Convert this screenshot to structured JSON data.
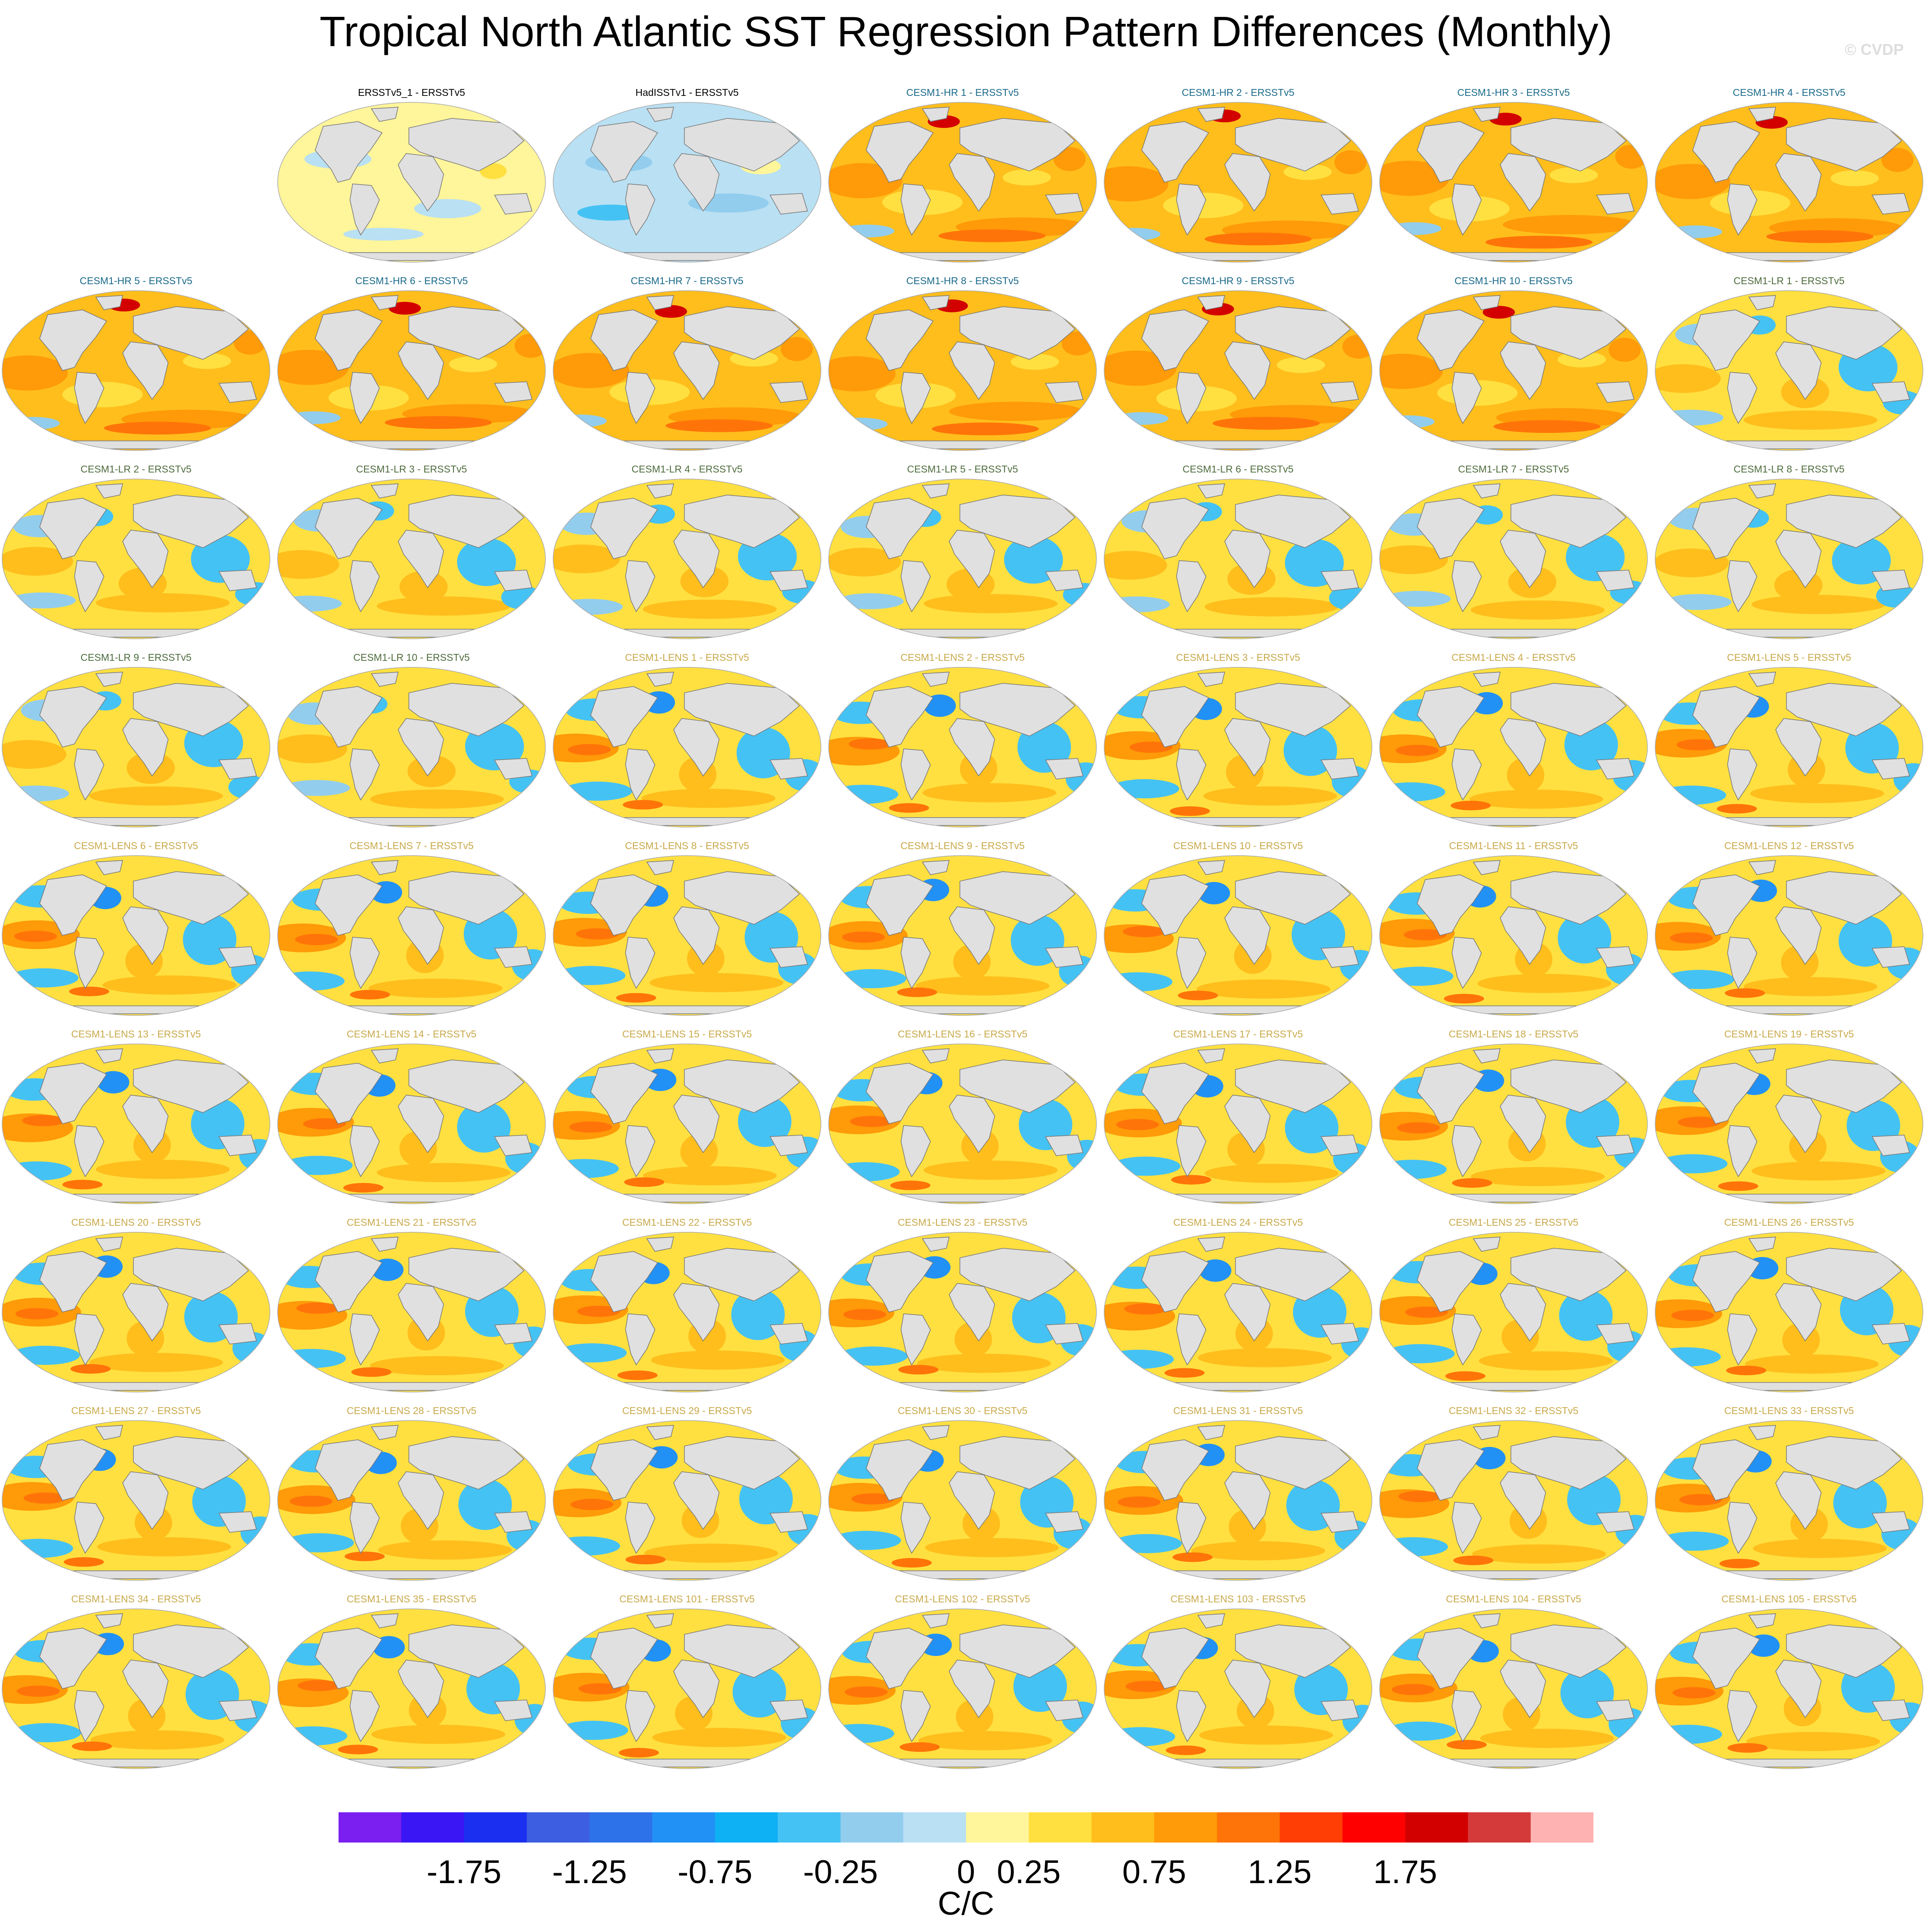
{
  "title": "Tropical North Atlantic SST Regression Pattern Differences (Monthly)",
  "copyright": "© CVDP",
  "colors": {
    "obs_title": "#000000",
    "hr_title": "#1a6a8a",
    "lr_title": "#4d6b3c",
    "lens_title": "#c9a94a",
    "land": "#e0e0e0",
    "coast": "#777777"
  },
  "panels": [
    {
      "label": "ERSSTv5_1 - ERSSTv5",
      "group": "obs",
      "pattern": "weak-pos"
    },
    {
      "label": "HadISSTv1 - ERSSTv5",
      "group": "obs",
      "pattern": "weak-neg"
    },
    {
      "label": "CESM1-HR 1 - ERSSTv5",
      "group": "hr",
      "pattern": "hr"
    },
    {
      "label": "CESM1-HR 2 - ERSSTv5",
      "group": "hr",
      "pattern": "hr"
    },
    {
      "label": "CESM1-HR 3 - ERSSTv5",
      "group": "hr",
      "pattern": "hr"
    },
    {
      "label": "CESM1-HR 4 - ERSSTv5",
      "group": "hr",
      "pattern": "hr"
    },
    {
      "label": "CESM1-HR 5 - ERSSTv5",
      "group": "hr",
      "pattern": "hr"
    },
    {
      "label": "CESM1-HR 6 - ERSSTv5",
      "group": "hr",
      "pattern": "hr"
    },
    {
      "label": "CESM1-HR 7 - ERSSTv5",
      "group": "hr",
      "pattern": "hr"
    },
    {
      "label": "CESM1-HR 8 - ERSSTv5",
      "group": "hr",
      "pattern": "hr"
    },
    {
      "label": "CESM1-HR 9 - ERSSTv5",
      "group": "hr",
      "pattern": "hr"
    },
    {
      "label": "CESM1-HR 10 - ERSSTv5",
      "group": "hr",
      "pattern": "hr"
    },
    {
      "label": "CESM1-LR 1 - ERSSTv5",
      "group": "lr",
      "pattern": "lr"
    },
    {
      "label": "CESM1-LR 2 - ERSSTv5",
      "group": "lr",
      "pattern": "lr"
    },
    {
      "label": "CESM1-LR 3 - ERSSTv5",
      "group": "lr",
      "pattern": "lr"
    },
    {
      "label": "CESM1-LR 4 - ERSSTv5",
      "group": "lr",
      "pattern": "lr"
    },
    {
      "label": "CESM1-LR 5 - ERSSTv5",
      "group": "lr",
      "pattern": "lr"
    },
    {
      "label": "CESM1-LR 6 - ERSSTv5",
      "group": "lr",
      "pattern": "lr"
    },
    {
      "label": "CESM1-LR 7 - ERSSTv5",
      "group": "lr",
      "pattern": "lr"
    },
    {
      "label": "CESM1-LR 8 - ERSSTv5",
      "group": "lr",
      "pattern": "lr"
    },
    {
      "label": "CESM1-LR 9 - ERSSTv5",
      "group": "lr",
      "pattern": "lr"
    },
    {
      "label": "CESM1-LR 10 - ERSSTv5",
      "group": "lr",
      "pattern": "lr"
    },
    {
      "label": "CESM1-LENS 1 - ERSSTv5",
      "group": "lens",
      "pattern": "lens"
    },
    {
      "label": "CESM1-LENS 2 - ERSSTv5",
      "group": "lens",
      "pattern": "lens"
    },
    {
      "label": "CESM1-LENS 3 - ERSSTv5",
      "group": "lens",
      "pattern": "lens"
    },
    {
      "label": "CESM1-LENS 4 - ERSSTv5",
      "group": "lens",
      "pattern": "lens"
    },
    {
      "label": "CESM1-LENS 5 - ERSSTv5",
      "group": "lens",
      "pattern": "lens"
    },
    {
      "label": "CESM1-LENS 6 - ERSSTv5",
      "group": "lens",
      "pattern": "lens"
    },
    {
      "label": "CESM1-LENS 7 - ERSSTv5",
      "group": "lens",
      "pattern": "lens"
    },
    {
      "label": "CESM1-LENS 8 - ERSSTv5",
      "group": "lens",
      "pattern": "lens"
    },
    {
      "label": "CESM1-LENS 9 - ERSSTv5",
      "group": "lens",
      "pattern": "lens"
    },
    {
      "label": "CESM1-LENS 10 - ERSSTv5",
      "group": "lens",
      "pattern": "lens"
    },
    {
      "label": "CESM1-LENS 11 - ERSSTv5",
      "group": "lens",
      "pattern": "lens"
    },
    {
      "label": "CESM1-LENS 12 - ERSSTv5",
      "group": "lens",
      "pattern": "lens"
    },
    {
      "label": "CESM1-LENS 13 - ERSSTv5",
      "group": "lens",
      "pattern": "lens"
    },
    {
      "label": "CESM1-LENS 14 - ERSSTv5",
      "group": "lens",
      "pattern": "lens"
    },
    {
      "label": "CESM1-LENS 15 - ERSSTv5",
      "group": "lens",
      "pattern": "lens"
    },
    {
      "label": "CESM1-LENS 16 - ERSSTv5",
      "group": "lens",
      "pattern": "lens"
    },
    {
      "label": "CESM1-LENS 17 - ERSSTv5",
      "group": "lens",
      "pattern": "lens"
    },
    {
      "label": "CESM1-LENS 18 - ERSSTv5",
      "group": "lens",
      "pattern": "lens"
    },
    {
      "label": "CESM1-LENS 19 - ERSSTv5",
      "group": "lens",
      "pattern": "lens"
    },
    {
      "label": "CESM1-LENS 20 - ERSSTv5",
      "group": "lens",
      "pattern": "lens"
    },
    {
      "label": "CESM1-LENS 21 - ERSSTv5",
      "group": "lens",
      "pattern": "lens"
    },
    {
      "label": "CESM1-LENS 22 - ERSSTv5",
      "group": "lens",
      "pattern": "lens"
    },
    {
      "label": "CESM1-LENS 23 - ERSSTv5",
      "group": "lens",
      "pattern": "lens"
    },
    {
      "label": "CESM1-LENS 24 - ERSSTv5",
      "group": "lens",
      "pattern": "lens"
    },
    {
      "label": "CESM1-LENS 25 - ERSSTv5",
      "group": "lens",
      "pattern": "lens"
    },
    {
      "label": "CESM1-LENS 26 - ERSSTv5",
      "group": "lens",
      "pattern": "lens"
    },
    {
      "label": "CESM1-LENS 27 - ERSSTv5",
      "group": "lens",
      "pattern": "lens"
    },
    {
      "label": "CESM1-LENS 28 - ERSSTv5",
      "group": "lens",
      "pattern": "lens"
    },
    {
      "label": "CESM1-LENS 29 - ERSSTv5",
      "group": "lens",
      "pattern": "lens"
    },
    {
      "label": "CESM1-LENS 30 - ERSSTv5",
      "group": "lens",
      "pattern": "lens"
    },
    {
      "label": "CESM1-LENS 31 - ERSSTv5",
      "group": "lens",
      "pattern": "lens"
    },
    {
      "label": "CESM1-LENS 32 - ERSSTv5",
      "group": "lens",
      "pattern": "lens"
    },
    {
      "label": "CESM1-LENS 33 - ERSSTv5",
      "group": "lens",
      "pattern": "lens"
    },
    {
      "label": "CESM1-LENS 34 - ERSSTv5",
      "group": "lens",
      "pattern": "lens"
    },
    {
      "label": "CESM1-LENS 35 - ERSSTv5",
      "group": "lens",
      "pattern": "lens"
    },
    {
      "label": "CESM1-LENS 101 - ERSSTv5",
      "group": "lens",
      "pattern": "lens"
    },
    {
      "label": "CESM1-LENS 102 - ERSSTv5",
      "group": "lens",
      "pattern": "lens"
    },
    {
      "label": "CESM1-LENS 103 - ERSSTv5",
      "group": "lens",
      "pattern": "lens"
    },
    {
      "label": "CESM1-LENS 104 - ERSSTv5",
      "group": "lens",
      "pattern": "lens"
    },
    {
      "label": "CESM1-LENS 105 - ERSSTv5",
      "group": "lens",
      "pattern": "lens"
    }
  ],
  "colorbar": {
    "units": "C/C",
    "colors": [
      "#7a1fef",
      "#3b16f5",
      "#1b2ff0",
      "#3d5ee0",
      "#2e72ea",
      "#2291f5",
      "#0fb1f5",
      "#45c2f4",
      "#92cdee",
      "#b9e0f3",
      "#fff59a",
      "#ffe040",
      "#ffbe1c",
      "#ff9a08",
      "#ff7408",
      "#ff3e06",
      "#ff0000",
      "#d30000",
      "#d43a3a",
      "#ffb2b2"
    ],
    "tick_labels": [
      "-1.75",
      "-1.25",
      "-0.75",
      "-0.25",
      "0",
      "0.25",
      "0.75",
      "1.25",
      "1.75"
    ]
  }
}
